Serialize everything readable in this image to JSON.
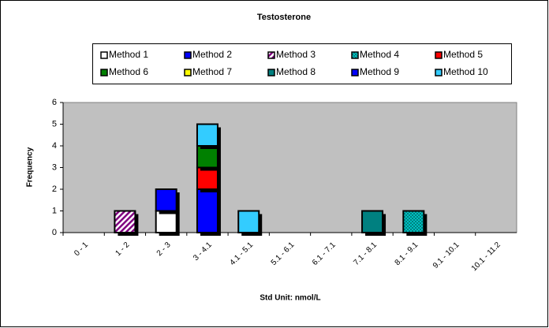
{
  "chart_data": {
    "type": "stacked_bar",
    "title": "Testosterone",
    "x_label": "Std Unit: nmol/L",
    "y_label": "Frequency",
    "categories": [
      "0 - 1",
      "1 - 2",
      "2 - 3",
      "3 - 4.1",
      "4.1 - 5.1",
      "5.1 - 6.1",
      "6.1 - 7.1",
      "7.1 - 8.1",
      "8.1 - 9.1",
      "9.1 - 10.1",
      "10.1 - 11.2"
    ],
    "series": [
      {
        "name": "Method 1",
        "color": "#ffffff",
        "values": [
          0,
          0,
          1,
          0,
          0,
          0,
          0,
          0,
          0,
          0,
          0
        ]
      },
      {
        "name": "Method 2",
        "color": "#0000ff",
        "values": [
          0,
          0,
          1,
          2,
          0,
          0,
          0,
          0,
          0,
          0,
          0
        ]
      },
      {
        "name": "Method 3",
        "color": "#800080",
        "pattern": "diagonal",
        "values": [
          0,
          1,
          0,
          0,
          0,
          0,
          0,
          0,
          0,
          0,
          0
        ]
      },
      {
        "name": "Method 4",
        "color": "#008080",
        "pattern": "checker",
        "values": [
          0,
          0,
          0,
          0,
          0,
          0,
          0,
          0,
          1,
          0,
          0
        ]
      },
      {
        "name": "Method 5",
        "color": "#ff0000",
        "values": [
          0,
          0,
          0,
          1,
          0,
          0,
          0,
          0,
          0,
          0,
          0
        ]
      },
      {
        "name": "Method 6",
        "color": "#008000",
        "values": [
          0,
          0,
          0,
          1,
          0,
          0,
          0,
          0,
          0,
          0,
          0
        ]
      },
      {
        "name": "Method 7",
        "color": "#ffff00",
        "values": [
          0,
          0,
          0,
          0,
          0,
          0,
          0,
          0,
          0,
          0,
          0
        ]
      },
      {
        "name": "Method 8",
        "color": "#008080",
        "values": [
          0,
          0,
          0,
          0,
          0,
          0,
          0,
          1,
          0,
          0,
          0
        ]
      },
      {
        "name": "Method 9",
        "color": "#0000ff",
        "values": [
          0,
          0,
          0,
          0,
          0,
          0,
          0,
          0,
          0,
          0,
          0
        ]
      },
      {
        "name": "Method 10",
        "color": "#33ccff",
        "values": [
          0,
          0,
          0,
          1,
          1,
          0,
          0,
          0,
          0,
          0,
          0
        ]
      }
    ],
    "ylim": [
      0,
      6
    ],
    "yticks": [
      0,
      1,
      2,
      3,
      4,
      5,
      6
    ],
    "plot_background": "#c0c0c0"
  }
}
